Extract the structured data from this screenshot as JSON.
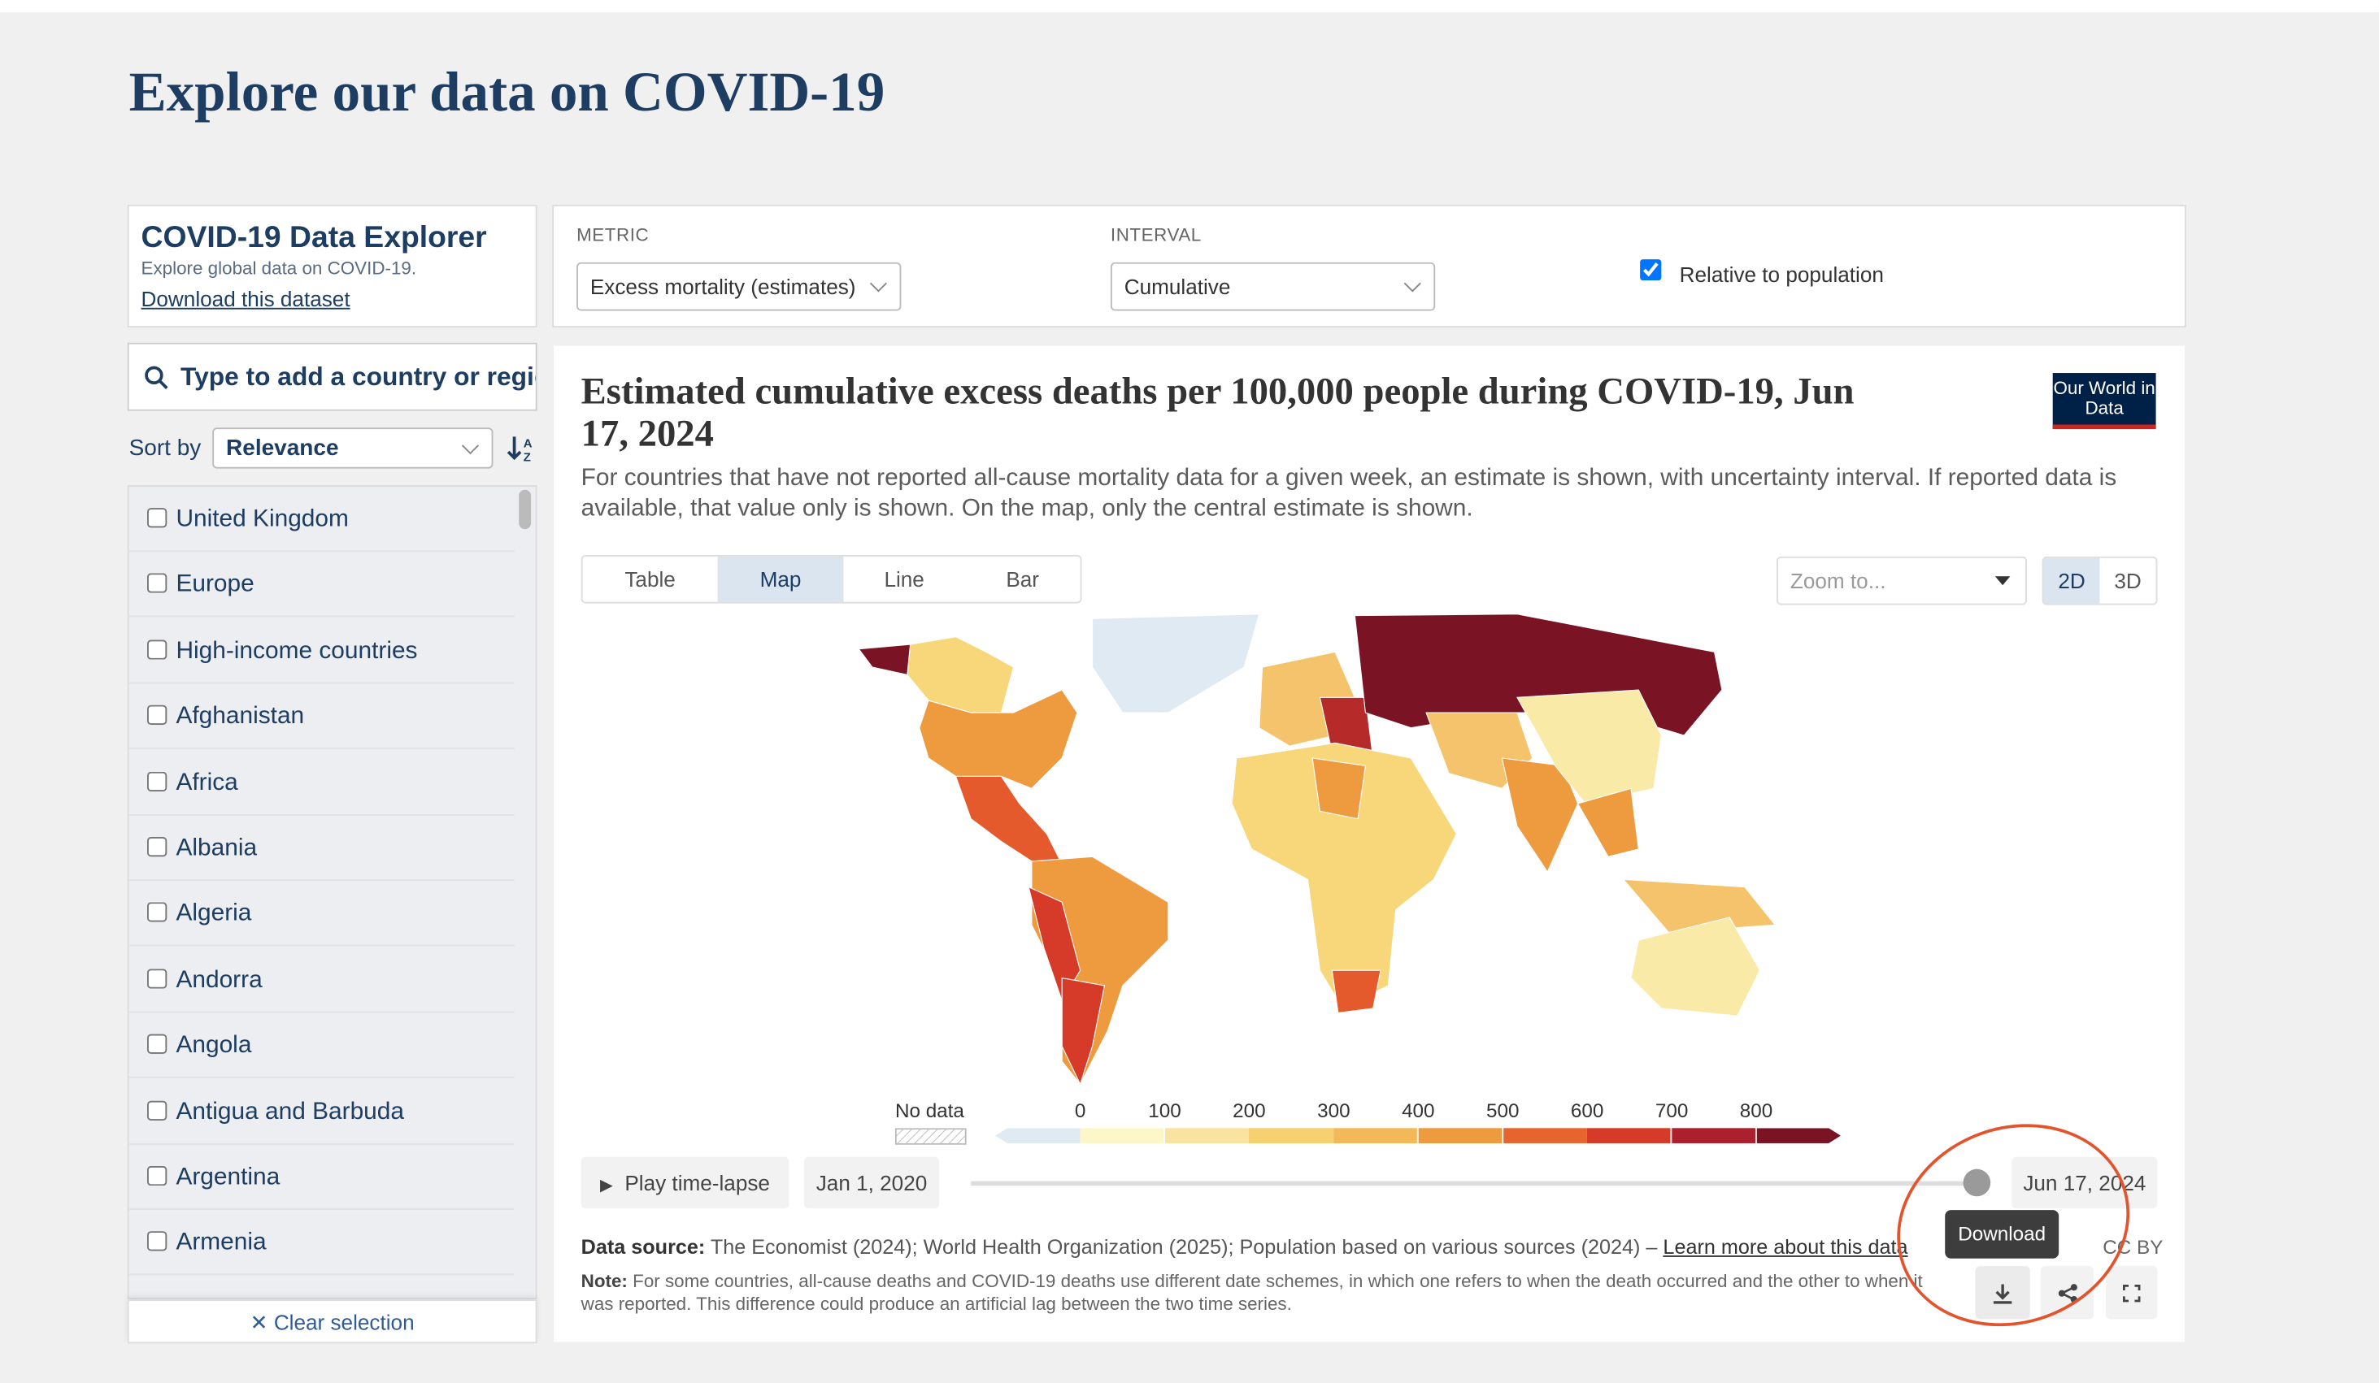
{
  "page": {
    "title": "Explore our data on COVID-19"
  },
  "explorer": {
    "title": "COVID-19 Data Explorer",
    "subtitle": "Explore global data on COVID-19.",
    "download_link": "Download this dataset"
  },
  "controls": {
    "metric_label": "METRIC",
    "metric_value": "Excess mortality (estimates)",
    "interval_label": "INTERVAL",
    "interval_value": "Cumulative",
    "checkbox_label": "Relative to population"
  },
  "sidebar": {
    "search_placeholder": "Type to add a country or region",
    "sort_label": "Sort by",
    "sort_value": "Relevance",
    "items": [
      "United Kingdom",
      "Europe",
      "High-income countries",
      "Afghanistan",
      "Africa",
      "Albania",
      "Algeria",
      "Andorra",
      "Angola",
      "Antigua and Barbuda",
      "Argentina",
      "Armenia"
    ],
    "clear": "Clear selection"
  },
  "chart": {
    "title": "Estimated cumulative excess deaths per 100,000 people during COVID-19, Jun 17, 2024",
    "subtitle": "For countries that have not reported all-cause mortality data for a given week, an estimate is shown, with uncertainty interval. If reported data is available, that value only is shown. On the map, only the central estimate is shown.",
    "logo": "Our World in Data",
    "tabs": [
      "Table",
      "Map",
      "Line",
      "Bar"
    ],
    "zoom_placeholder": "Zoom to...",
    "view_modes": [
      "2D",
      "3D"
    ],
    "legend": {
      "no_data": "No data",
      "ticks": [
        0,
        100,
        200,
        300,
        400,
        500,
        600,
        700,
        800
      ]
    },
    "timeline": {
      "play": "Play time-lapse",
      "start": "Jan 1, 2020",
      "end": "Jun 17, 2024"
    },
    "tooltip": "Download",
    "source_label": "Data source:",
    "source_text": "The Economist (2024); World Health Organization (2025); Population based on various sources (2024) –",
    "source_link": "Learn more about this data",
    "license": "CC BY",
    "note_label": "Note:",
    "note_text": "For some countries, all-cause deaths and COVID-19 deaths use different date schemes, in which one refers to when the death occurred and the other to when it was reported. This difference could produce an artificial lag between the two time series."
  }
}
